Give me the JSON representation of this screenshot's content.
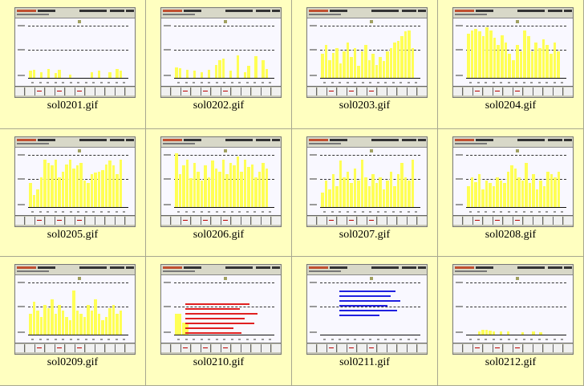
{
  "gallery": {
    "items": [
      {
        "filename": "sol0201.gif",
        "kind": "chart",
        "bar_heights": [
          0.12,
          0.14,
          0,
          0.1,
          0,
          0.15,
          0,
          0.08,
          0.13,
          0,
          0,
          0.05,
          0,
          0,
          0,
          0,
          0,
          0.1,
          0,
          0.12,
          0,
          0,
          0.1,
          0,
          0.15,
          0.12
        ]
      },
      {
        "filename": "sol0202.gif",
        "kind": "chart",
        "bar_heights": [
          0.18,
          0.16,
          0,
          0.14,
          0,
          0.12,
          0,
          0.1,
          0,
          0.13,
          0,
          0.22,
          0.3,
          0.32,
          0,
          0.12,
          0,
          0.38,
          0,
          0.1,
          0.2,
          0,
          0.36,
          0,
          0.3,
          0.15
        ]
      },
      {
        "filename": "sol0203.gif",
        "kind": "chart",
        "bar_heights": [
          0.4,
          0.55,
          0.3,
          0.42,
          0.5,
          0.25,
          0.45,
          0.6,
          0.35,
          0.5,
          0.2,
          0.45,
          0.55,
          0.3,
          0.4,
          0.22,
          0.35,
          0.28,
          0.45,
          0.5,
          0.6,
          0.62,
          0.7,
          0.78,
          0.8,
          0.5
        ]
      },
      {
        "filename": "sol0204.gif",
        "kind": "chart",
        "bar_heights": [
          0.75,
          0.8,
          0.82,
          0.78,
          0.7,
          0.85,
          0.8,
          0.68,
          0.55,
          0.72,
          0.6,
          0.4,
          0.3,
          0.55,
          0.45,
          0.8,
          0.7,
          0.45,
          0.6,
          0.5,
          0.65,
          0.55,
          0.4,
          0.6,
          0.45
        ]
      },
      {
        "filename": "sol0205.gif",
        "kind": "chart",
        "bar_heights": [
          0.4,
          0.2,
          0.3,
          0.5,
          0.8,
          0.75,
          0.7,
          0.8,
          0.5,
          0.6,
          0.72,
          0.8,
          0.65,
          0.7,
          0.75,
          0.45,
          0.4,
          0.55,
          0.58,
          0.6,
          0.62,
          0.72,
          0.78,
          0.7,
          0.55,
          0.8
        ]
      },
      {
        "filename": "sol0206.gif",
        "kind": "chart",
        "bar_heights": [
          0.9,
          0.55,
          0.7,
          0.8,
          0.48,
          0.75,
          0.6,
          0.45,
          0.7,
          0.5,
          0.78,
          0.65,
          0.6,
          0.8,
          0.55,
          0.75,
          0.7,
          0.85,
          0.6,
          0.8,
          0.68,
          0.72,
          0.5,
          0.6,
          0.75,
          0.65
        ]
      },
      {
        "filename": "sol0207.gif",
        "kind": "chart",
        "bar_heights": [
          0.25,
          0.45,
          0.3,
          0.55,
          0.35,
          0.78,
          0.5,
          0.6,
          0.4,
          0.65,
          0.45,
          0.8,
          0.5,
          0.35,
          0.55,
          0.4,
          0.5,
          0.3,
          0.45,
          0.6,
          0.35,
          0.55,
          0.75,
          0.5,
          0.45,
          0.8
        ]
      },
      {
        "filename": "sol0208.gif",
        "kind": "chart",
        "bar_heights": [
          0.35,
          0.5,
          0.42,
          0.55,
          0.3,
          0.45,
          0.4,
          0.35,
          0.5,
          0.45,
          0.4,
          0.6,
          0.7,
          0.65,
          0.5,
          0.45,
          0.75,
          0.4,
          0.55,
          0.3,
          0.45,
          0.35,
          0.6,
          0.55,
          0.5,
          0.6
        ]
      },
      {
        "filename": "sol0209.gif",
        "kind": "chart",
        "bar_heights": [
          0.35,
          0.55,
          0.4,
          0.3,
          0.5,
          0.45,
          0.6,
          0.35,
          0.5,
          0.4,
          0.3,
          0.25,
          0.75,
          0.4,
          0.35,
          0.3,
          0.5,
          0.4,
          0.6,
          0.35,
          0.25,
          0.3,
          0.45,
          0.5,
          0.35,
          0.4
        ]
      },
      {
        "filename": "sol0210.gif",
        "kind": "text-red",
        "bar_heights": [
          0.35,
          0.2
        ]
      },
      {
        "filename": "sol0211.gif",
        "kind": "text-blue",
        "bar_heights": []
      },
      {
        "filename": "sol0212.gif",
        "kind": "chart",
        "bar_heights": [
          0,
          0,
          0,
          0.06,
          0.08,
          0.08,
          0.07,
          0.06,
          0,
          0.05,
          0,
          0.06,
          0,
          0,
          0,
          0.04,
          0,
          0,
          0.06,
          0,
          0.04,
          0,
          0,
          0,
          0,
          0
        ]
      }
    ]
  },
  "colors": {
    "page_background": "#ffffc0",
    "bar": "#ffff55",
    "red_text": "#e02020",
    "blue_text": "#2020e0"
  }
}
